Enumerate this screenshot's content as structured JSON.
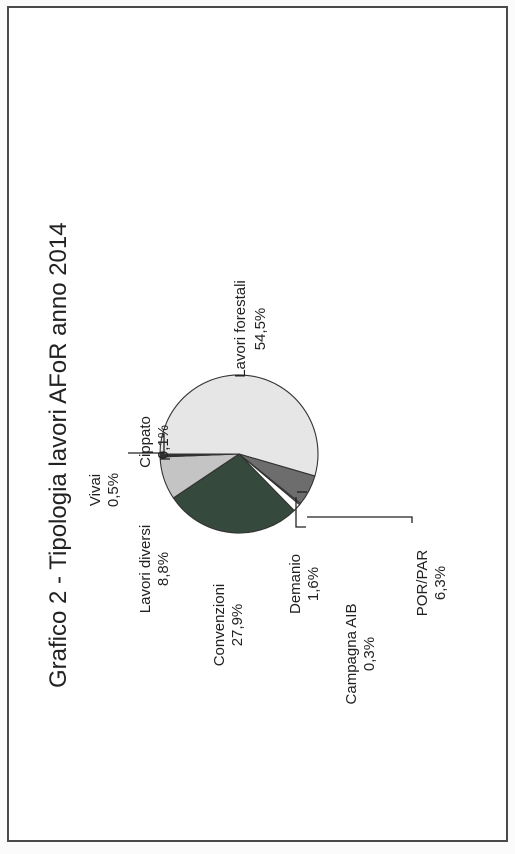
{
  "chart_data": {
    "type": "pie",
    "title": "Grafico 2 - Tipologia lavori AFoR anno 2014",
    "slices": [
      {
        "label": "Lavori forestali",
        "value": 54.5,
        "value_label": "54,5%",
        "color": "#e6e6e6"
      },
      {
        "label": "POR/PAR",
        "value": 6.3,
        "value_label": "6,3%",
        "color": "#6d6d6d"
      },
      {
        "label": "Campagna AIB",
        "value": 0.3,
        "value_label": "0,3%",
        "color": "#9a9a9a"
      },
      {
        "label": "Demanio",
        "value": 1.6,
        "value_label": "1,6%",
        "color": "#ffffff"
      },
      {
        "label": "Convenzioni",
        "value": 27.9,
        "value_label": "27,9%",
        "color": "#35493d"
      },
      {
        "label": "Lavori diversi",
        "value": 8.8,
        "value_label": "8,8%",
        "color": "#c4c4c4"
      },
      {
        "label": "Vivai",
        "value": 0.5,
        "value_label": "0,5%",
        "color": "#2f2f2f"
      },
      {
        "label": "Cippato",
        "value": 0.1,
        "value_label": "0,1%",
        "color": "#aaaaaa"
      }
    ]
  }
}
